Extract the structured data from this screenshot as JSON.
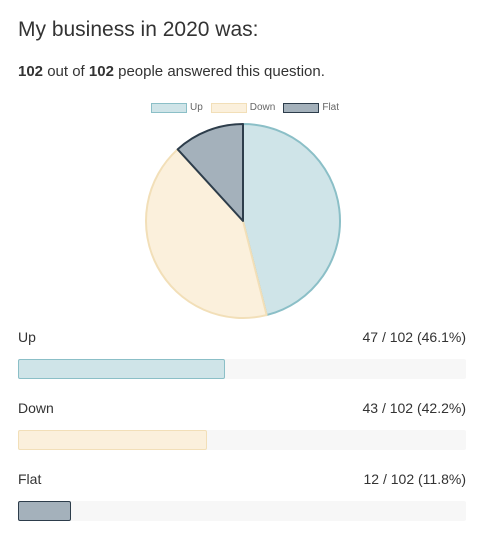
{
  "title": "My business in 2020 was:",
  "summary": {
    "answered": "102",
    "mid": " out of ",
    "total": "102",
    "suffix": " people answered this question."
  },
  "colors": {
    "up_fill": "#cfe4e8",
    "up_border": "#8bbfc7",
    "down_fill": "#fbf0dc",
    "down_border": "#f2dfb8",
    "flat_fill": "#a4b1bb",
    "flat_border": "#2d3d4b"
  },
  "chart_data": {
    "type": "pie",
    "legend_position": "top-center",
    "categories": [
      "Up",
      "Down",
      "Flat"
    ],
    "values": [
      47,
      43,
      12
    ],
    "legend": [
      "Up",
      "Down",
      "Flat"
    ]
  },
  "results": [
    {
      "label": "Up",
      "stat": "47 / 102 (46.1%)",
      "fraction": 0.461
    },
    {
      "label": "Down",
      "stat": "43 / 102 (42.2%)",
      "fraction": 0.422
    },
    {
      "label": "Flat",
      "stat": "12 / 102 (11.8%)",
      "fraction": 0.118
    }
  ]
}
